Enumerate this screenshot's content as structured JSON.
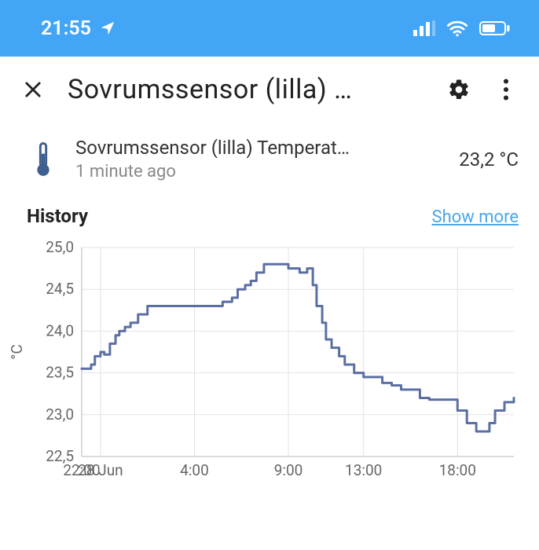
{
  "statusbar": {
    "time": "21:55",
    "bg_color": "#42a5f5",
    "fg_color": "#ffffff"
  },
  "header": {
    "title": "Sovrumssensor (lilla) …"
  },
  "sensor": {
    "name": "Sovrumssensor (lilla) Temperat…",
    "age": "1 minute ago",
    "value": "23,2 °C",
    "icon_color": "#3f5f8f"
  },
  "history": {
    "title": "History",
    "show_more": "Show more",
    "show_more_color": "#4aa7e6"
  },
  "chart": {
    "type": "line",
    "y_unit": "°C",
    "ylim": [
      22.5,
      25.0
    ],
    "ytick_step": 0.5,
    "ytick_labels": [
      "22,5",
      "23,0",
      "23,5",
      "24,0",
      "24,5",
      "25,0"
    ],
    "xticks": [
      22,
      23,
      28,
      33,
      37,
      42
    ],
    "xtick_labels": [
      "22:00",
      "28 Jun",
      "4:00",
      "9:00",
      "13:00",
      "18:00"
    ],
    "x_range": [
      22,
      45
    ],
    "line_color": "#5b6fa3",
    "grid_color": "#e2e2e2",
    "axis_color": "#cfcfcf",
    "background_color": "#ffffff",
    "line_width": 3,
    "label_fontsize": 19,
    "label_color": "#666666",
    "series": [
      [
        22.0,
        23.55
      ],
      [
        22.5,
        23.6
      ],
      [
        22.7,
        23.7
      ],
      [
        23.0,
        23.75
      ],
      [
        23.2,
        23.72
      ],
      [
        23.5,
        23.85
      ],
      [
        23.8,
        23.95
      ],
      [
        24.0,
        24.0
      ],
      [
        24.3,
        24.05
      ],
      [
        24.6,
        24.1
      ],
      [
        25.0,
        24.2
      ],
      [
        25.5,
        24.3
      ],
      [
        26.0,
        24.3
      ],
      [
        27.0,
        24.3
      ],
      [
        28.0,
        24.3
      ],
      [
        28.5,
        24.3
      ],
      [
        29.0,
        24.3
      ],
      [
        29.5,
        24.35
      ],
      [
        30.0,
        24.4
      ],
      [
        30.3,
        24.5
      ],
      [
        30.7,
        24.55
      ],
      [
        31.0,
        24.6
      ],
      [
        31.3,
        24.7
      ],
      [
        31.7,
        24.8
      ],
      [
        32.0,
        24.8
      ],
      [
        32.5,
        24.8
      ],
      [
        33.0,
        24.75
      ],
      [
        33.3,
        24.75
      ],
      [
        33.6,
        24.7
      ],
      [
        34.0,
        24.75
      ],
      [
        34.3,
        24.55
      ],
      [
        34.5,
        24.3
      ],
      [
        34.8,
        24.1
      ],
      [
        35.0,
        23.9
      ],
      [
        35.3,
        23.8
      ],
      [
        35.7,
        23.7
      ],
      [
        36.0,
        23.6
      ],
      [
        36.5,
        23.5
      ],
      [
        37.0,
        23.45
      ],
      [
        37.5,
        23.45
      ],
      [
        38.0,
        23.38
      ],
      [
        38.5,
        23.35
      ],
      [
        39.0,
        23.3
      ],
      [
        40.0,
        23.2
      ],
      [
        40.5,
        23.18
      ],
      [
        41.0,
        23.18
      ],
      [
        41.5,
        23.18
      ],
      [
        42.0,
        23.05
      ],
      [
        42.5,
        22.9
      ],
      [
        43.0,
        22.8
      ],
      [
        43.3,
        22.8
      ],
      [
        43.7,
        22.9
      ],
      [
        44.0,
        23.05
      ],
      [
        44.5,
        23.15
      ],
      [
        45.0,
        23.2
      ]
    ]
  }
}
